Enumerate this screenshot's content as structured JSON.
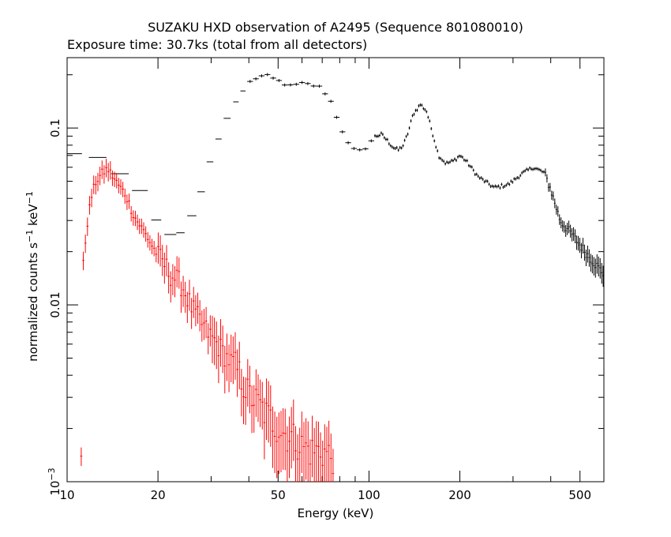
{
  "chart_data": {
    "type": "scatter",
    "title": "SUZAKU HXD observation of A2495 (Sequence 801080010)",
    "subtitle": "Exposure time: 30.7ks (total from all detectors)",
    "xlabel": "Energy (keV)",
    "ylabel_parts": {
      "base": "normalized counts s",
      "sup1": "−1",
      "mid": " keV",
      "sup2": "−1"
    },
    "x_scale": "log",
    "y_scale": "log",
    "xlim": [
      10,
      600
    ],
    "ylim": [
      0.001,
      0.25
    ],
    "grid": false,
    "x_ticks": [
      {
        "value": 10,
        "label": "10"
      },
      {
        "value": 20,
        "label": "20"
      },
      {
        "value": 50,
        "label": "50"
      },
      {
        "value": 100,
        "label": "100"
      },
      {
        "value": 200,
        "label": "200"
      },
      {
        "value": 500,
        "label": "500"
      }
    ],
    "y_ticks": [
      {
        "value": 0.1,
        "label": "0.1"
      },
      {
        "value": 0.01,
        "label": "0.01"
      },
      {
        "value": 0.001,
        "label_base": "10",
        "label_sup": "−3"
      }
    ],
    "series": [
      {
        "color": "#000000",
        "anchors": [
          [
            10.3,
            0.072
          ],
          [
            12.5,
            0.069
          ],
          [
            15,
            0.055
          ],
          [
            17.5,
            0.044
          ],
          [
            19.5,
            0.031
          ],
          [
            21.5,
            0.025
          ],
          [
            23.5,
            0.025
          ],
          [
            25.5,
            0.03
          ],
          [
            27.5,
            0.041
          ],
          [
            29.5,
            0.062
          ],
          [
            31.5,
            0.084
          ],
          [
            34,
            0.115
          ],
          [
            37,
            0.15
          ],
          [
            40,
            0.18
          ],
          [
            43,
            0.196
          ],
          [
            46,
            0.196
          ],
          [
            50,
            0.185
          ],
          [
            55,
            0.172
          ],
          [
            60,
            0.178
          ],
          [
            65,
            0.175
          ],
          [
            70,
            0.168
          ],
          [
            75,
            0.14
          ],
          [
            80,
            0.105
          ],
          [
            85,
            0.082
          ],
          [
            90,
            0.074
          ],
          [
            95,
            0.074
          ],
          [
            100,
            0.082
          ],
          [
            105,
            0.09
          ],
          [
            110,
            0.092
          ],
          [
            115,
            0.085
          ],
          [
            120,
            0.078
          ],
          [
            125,
            0.075
          ],
          [
            130,
            0.08
          ],
          [
            135,
            0.095
          ],
          [
            140,
            0.12
          ],
          [
            148,
            0.136
          ],
          [
            155,
            0.125
          ],
          [
            162,
            0.095
          ],
          [
            170,
            0.07
          ],
          [
            180,
            0.063
          ],
          [
            190,
            0.065
          ],
          [
            200,
            0.07
          ],
          [
            210,
            0.065
          ],
          [
            230,
            0.053
          ],
          [
            260,
            0.046
          ],
          [
            290,
            0.048
          ],
          [
            320,
            0.055
          ],
          [
            350,
            0.06
          ],
          [
            380,
            0.056
          ],
          [
            400,
            0.045
          ],
          [
            430,
            0.03
          ],
          [
            470,
            0.025
          ],
          [
            520,
            0.02
          ],
          [
            580,
            0.016
          ],
          [
            600,
            0.015
          ]
        ]
      },
      {
        "color": "#ff0000",
        "anchors": [
          [
            11.2,
            0.014
          ],
          [
            11.6,
            0.027
          ],
          [
            12.0,
            0.04
          ],
          [
            12.4,
            0.049
          ],
          [
            13.0,
            0.055
          ],
          [
            13.6,
            0.059
          ],
          [
            14.0,
            0.055
          ],
          [
            14.5,
            0.05
          ],
          [
            15,
            0.046
          ],
          [
            15.5,
            0.043
          ],
          [
            16,
            0.038
          ],
          [
            16.5,
            0.033
          ],
          [
            17,
            0.03
          ],
          [
            18,
            0.026
          ],
          [
            19,
            0.022
          ],
          [
            20,
            0.019
          ],
          [
            21,
            0.017
          ],
          [
            22,
            0.015
          ],
          [
            23,
            0.014
          ],
          [
            24,
            0.013
          ],
          [
            25,
            0.011
          ],
          [
            26,
            0.0095
          ],
          [
            28,
            0.0078
          ],
          [
            30,
            0.0066
          ],
          [
            32,
            0.0058
          ],
          [
            34,
            0.005
          ],
          [
            36,
            0.0045
          ],
          [
            38,
            0.0038
          ],
          [
            40,
            0.0031
          ],
          [
            42,
            0.0029
          ],
          [
            45,
            0.0025
          ],
          [
            48,
            0.0022
          ],
          [
            52,
            0.0019
          ],
          [
            56,
            0.0018
          ],
          [
            60,
            0.0016
          ],
          [
            65,
            0.0015
          ],
          [
            70,
            0.0015
          ],
          [
            75,
            0.0014
          ]
        ]
      }
    ]
  }
}
